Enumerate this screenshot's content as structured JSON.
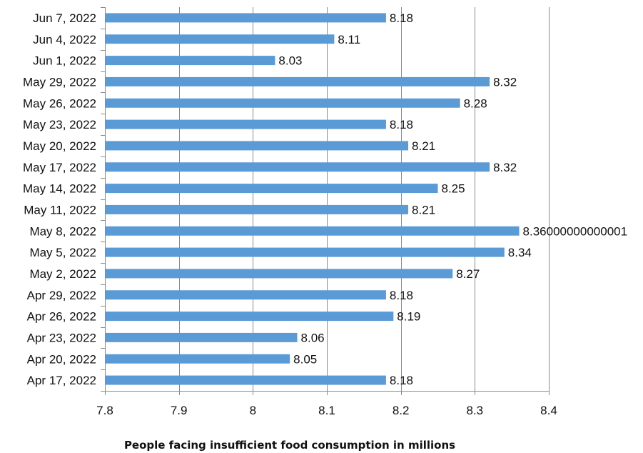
{
  "chart_data": {
    "type": "bar",
    "orientation": "horizontal",
    "title": "",
    "xlabel": "People facing insufficient food consumption in millions",
    "ylabel": "",
    "categories": [
      "Apr 17, 2022",
      "Apr 20, 2022",
      "Apr 23, 2022",
      "Apr 26, 2022",
      "Apr 29, 2022",
      "May 2, 2022",
      "May 5, 2022",
      "May 8, 2022",
      "May 11, 2022",
      "May 14, 2022",
      "May 17, 2022",
      "May 20, 2022",
      "May 23, 2022",
      "May 26, 2022",
      "May 29, 2022",
      "Jun 1, 2022",
      "Jun 4, 2022",
      "Jun 7, 2022"
    ],
    "values": [
      8.18,
      8.05,
      8.06,
      8.19,
      8.18,
      8.27,
      8.34,
      8.36000000000001,
      8.21,
      8.25,
      8.32,
      8.21,
      8.18,
      8.28,
      8.32,
      8.03,
      8.11,
      8.18
    ],
    "value_labels": [
      "8.18",
      "8.05",
      "8.06",
      "8.19",
      "8.18",
      "8.27",
      "8.34",
      "8.36000000000001",
      "8.21",
      "8.25",
      "8.32",
      "8.21",
      "8.18",
      "8.28",
      "8.32",
      "8.03",
      "8.11",
      "8.18"
    ],
    "xlim": [
      7.8,
      8.4
    ],
    "xticks": [
      7.8,
      7.9,
      8,
      8.1,
      8.2,
      8.3,
      8.4
    ],
    "xtick_labels": [
      "7.8",
      "7.9",
      "8",
      "8.1",
      "8.2",
      "8.3",
      "8.4"
    ],
    "grid": "vertical",
    "legend": "none",
    "colors": {
      "bar": "#5b9bd5",
      "grid": "#8a8a8a",
      "text": "#111111"
    }
  }
}
